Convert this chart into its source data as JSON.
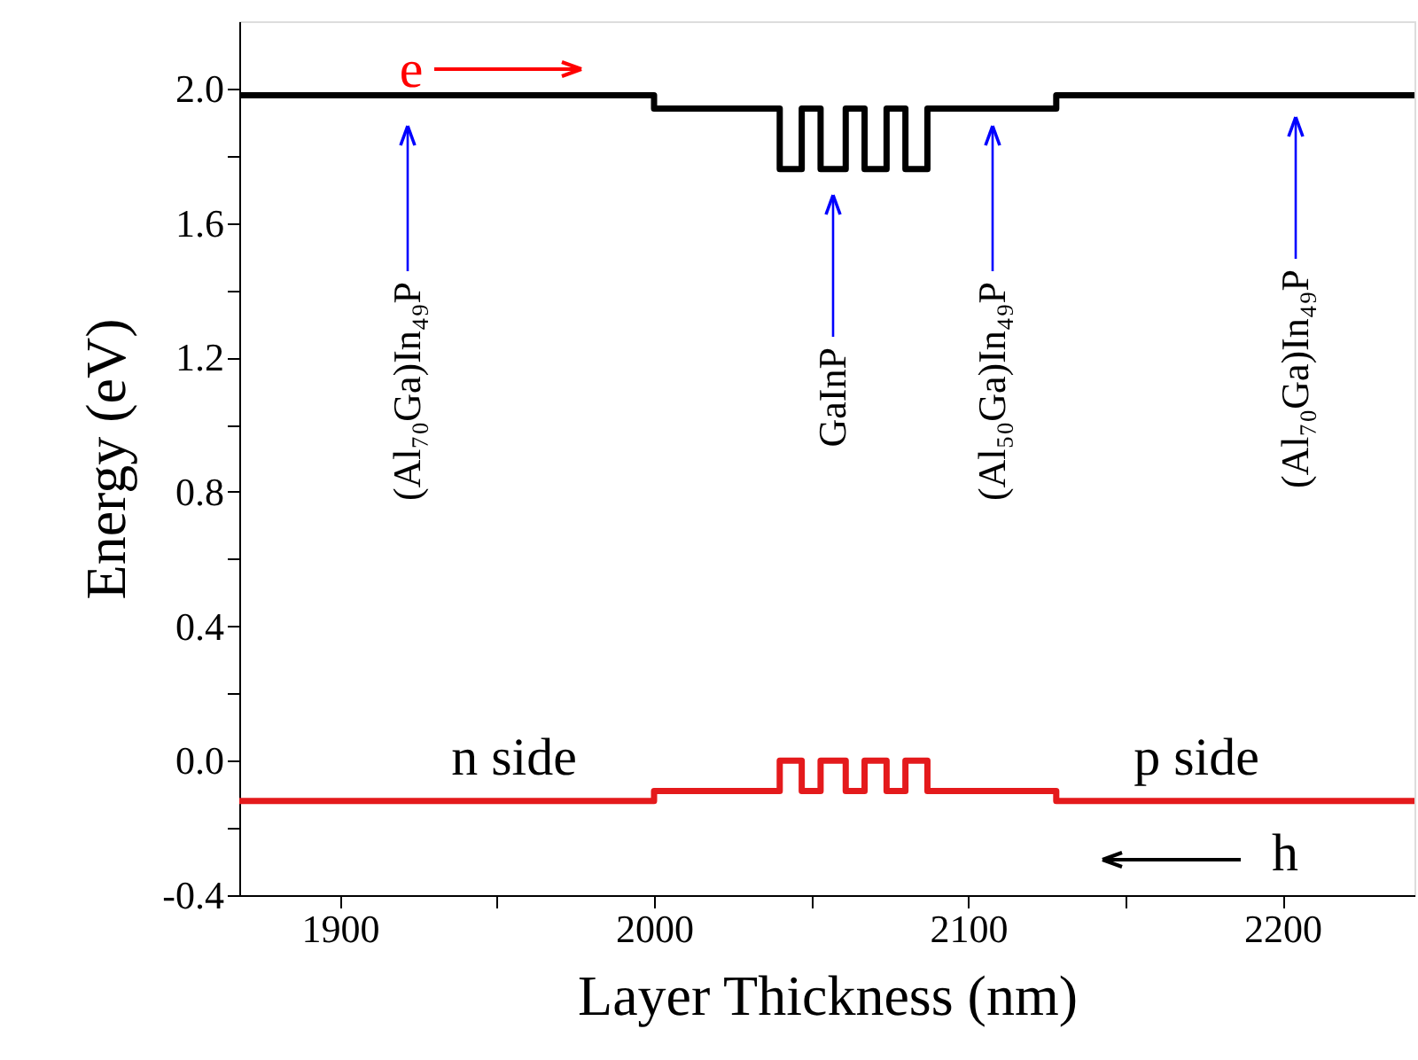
{
  "chart_data": {
    "type": "step",
    "xlabel": "Layer Thickness (nm)",
    "ylabel": "Energy (eV)",
    "series": [
      {
        "color": "#000000",
        "x": [
          1868,
          2000,
          2040,
          2047,
          2053,
          2061,
          2067,
          2074,
          2080,
          2087,
          2128,
          2242
        ],
        "values": [
          1.98,
          1.94,
          1.76,
          1.94,
          1.76,
          1.94,
          1.76,
          1.94,
          1.76,
          1.94,
          1.98,
          1.98
        ]
      },
      {
        "color": "#e41a1c",
        "x": [
          1868,
          2000,
          2040,
          2047,
          2053,
          2061,
          2067,
          2074,
          2080,
          2087,
          2128,
          2242
        ],
        "values": [
          -0.12,
          -0.09,
          0.0,
          -0.09,
          0.0,
          -0.09,
          0.0,
          -0.09,
          0.0,
          -0.09,
          -0.12,
          -0.12
        ]
      }
    ],
    "xlim": [
      1868,
      2242
    ],
    "xticks": [
      1900,
      {
        "value": 1950,
        "label": null
      },
      2000,
      {
        "value": 2050,
        "label": null
      },
      2100,
      {
        "value": 2150,
        "label": null
      },
      2200
    ],
    "ylim": [
      -0.4,
      2.2
    ],
    "yticks": [
      {
        "value": -0.4,
        "label": "-0.4"
      },
      {
        "value": -0.2,
        "label": null
      },
      {
        "value": 0.0,
        "label": "0.0"
      },
      {
        "value": 0.2,
        "label": null
      },
      {
        "value": 0.4,
        "label": "0.4"
      },
      {
        "value": 0.6,
        "label": null
      },
      {
        "value": 0.8,
        "label": "0.8"
      },
      {
        "value": 1.0,
        "label": null
      },
      {
        "value": 1.2,
        "label": "1.2"
      },
      {
        "value": 1.4,
        "label": null
      },
      {
        "value": 1.6,
        "label": "1.6"
      },
      {
        "value": 1.8,
        "label": null
      },
      {
        "value": 2.0,
        "label": "2.0"
      }
    ],
    "annotations": [
      "(Al₇₀Ga)In₄₉P",
      "GaInP",
      "(Al₅₀Ga)In₄₉P",
      "(Al₇₀Ga)In₄₉P",
      "e",
      "h",
      "n side",
      "p side"
    ],
    "grid": false
  }
}
